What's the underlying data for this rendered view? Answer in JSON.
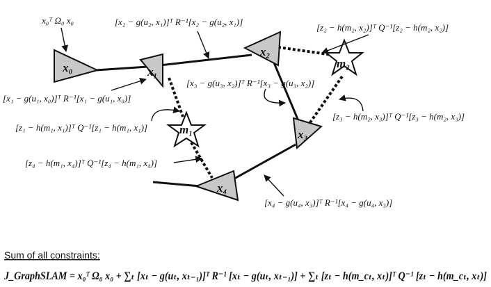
{
  "labels": {
    "prior": "x₀ᵀ Ω₀ x₀",
    "odo_x2": "[x₂ − g(u₂, x₁)]ᵀ R⁻¹[x₂ − g(u₂, x₁)]",
    "obs_m2_x2": "[z₂ − h(m₂, x₂)]ᵀ Q⁻¹[z₂ − h(m₂, x₂)]",
    "odo_x1": "[x₁ − g(u₁, x₀)]ᵀ R⁻¹[x₁ − g(u₁, x₀)]",
    "odo_x3": "[x₃ − g(u₃, x₂)]ᵀ R⁻¹[x₃ − g(u₃, x₂)]",
    "obs_m1_x1": "[z₁ − h(m₁, x₁)]ᵀ Q⁻¹[z₁ − h(m₁, x₁)]",
    "obs_m2_x3": "[z₃ − h(m₂, x₃)]ᵀ Q⁻¹[z₃ − h(m₂, x₃)]",
    "obs_m1_x4": "[z₄ − h(m₁, x₄)]ᵀ Q⁻¹[z₄ − h(m₁, x₄)]",
    "odo_x4": "[x₄ − g(u₄, x₃)]ᵀ R⁻¹[x₄ − g(u₄, x₃)]"
  },
  "nodes": {
    "x0": "x₀",
    "x1": "x₁",
    "x2": "x₂",
    "x3": "x₃",
    "x4": "x₄",
    "m1": "m₁",
    "m2": "m₂"
  },
  "summary": {
    "title": "Sum of all constraints:",
    "formula": "J_GraphSLAM = x₀ᵀ Ω₀ x₀ + ∑ₜ [xₜ − g(uₜ, xₜ₋₁)]ᵀ R⁻¹ [xₜ − g(uₜ, xₜ₋₁)] + ∑ₜ [zₜ − h(m_cₜ, xₜ)]ᵀ Q⁻¹ [zₜ − h(m_cₜ, xₜ)]"
  }
}
